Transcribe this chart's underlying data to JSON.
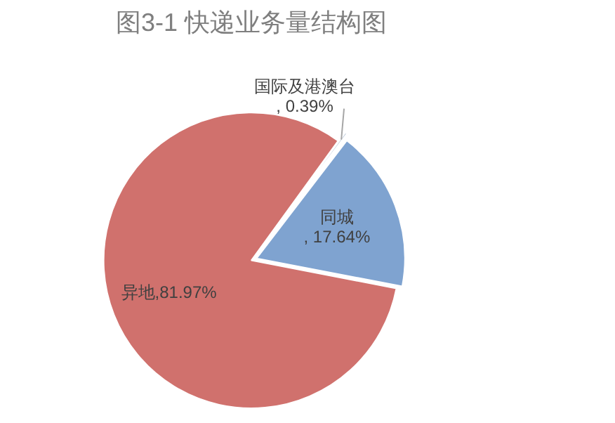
{
  "chart_data": {
    "type": "pie",
    "title": "图3-1 快递业务量结构图",
    "categories": [
      "国际及港澳台",
      "同城",
      "异地"
    ],
    "values": [
      0.39,
      17.64,
      81.97
    ],
    "colors": [
      "#b9c6d8",
      "#7fa3d0",
      "#d0716d"
    ],
    "value_labels": [
      ", 0.39%",
      ", 17.64%",
      ",81.97%"
    ],
    "legend": false
  }
}
